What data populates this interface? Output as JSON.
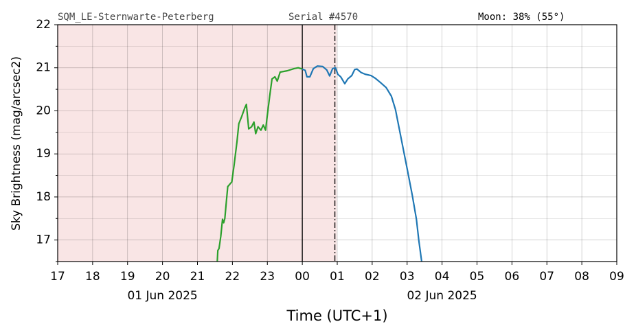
{
  "chart_data": {
    "type": "line",
    "header": {
      "site": "SQM_LE-Sternwarte-Peterberg",
      "serial": "Serial #4570",
      "moon": "Moon: 38% (55°)"
    },
    "xlabel": "Time (UTC+1)",
    "ylabel": "Sky Brightness (mag/arcsec2)",
    "xlim": [
      "2025-06-01 17:00",
      "2025-06-02 09:00"
    ],
    "xticks": [
      {
        "value": "2025-06-01 17:00",
        "label": "17"
      },
      {
        "value": "2025-06-01 18:00",
        "label": "18"
      },
      {
        "value": "2025-06-01 19:00",
        "label": "19"
      },
      {
        "value": "2025-06-01 20:00",
        "label": "20"
      },
      {
        "value": "2025-06-01 21:00",
        "label": "21"
      },
      {
        "value": "2025-06-01 22:00",
        "label": "22"
      },
      {
        "value": "2025-06-01 23:00",
        "label": "23"
      },
      {
        "value": "2025-06-02 00:00",
        "label": "00"
      },
      {
        "value": "2025-06-02 01:00",
        "label": "01"
      },
      {
        "value": "2025-06-02 02:00",
        "label": "02"
      },
      {
        "value": "2025-06-02 03:00",
        "label": "03"
      },
      {
        "value": "2025-06-02 04:00",
        "label": "04"
      },
      {
        "value": "2025-06-02 05:00",
        "label": "05"
      },
      {
        "value": "2025-06-02 06:00",
        "label": "06"
      },
      {
        "value": "2025-06-02 07:00",
        "label": "07"
      },
      {
        "value": "2025-06-02 08:00",
        "label": "08"
      },
      {
        "value": "2025-06-02 09:00",
        "label": "09"
      }
    ],
    "date_labels": [
      {
        "value": "2025-06-01 20:00",
        "label": "01 Jun 2025"
      },
      {
        "value": "2025-06-02 04:00",
        "label": "02 Jun 2025"
      }
    ],
    "ylim": [
      16.5,
      22
    ],
    "yticks": [
      17,
      18,
      19,
      20,
      21,
      22
    ],
    "yminor": [
      16.5,
      17.5,
      18.5,
      19.5,
      20.5,
      21.5
    ],
    "grid": true,
    "shade": {
      "from": "2025-06-01 17:00",
      "to": "2025-06-02 00:59",
      "color": "#f9e5e5"
    },
    "vlines": [
      {
        "x": "2025-06-02 00:00",
        "style": "solid"
      },
      {
        "x": "2025-06-02 00:56",
        "style": "dashdot"
      }
    ],
    "series": [
      {
        "color": "#2ca02c",
        "x": [
          "2025-06-01 21:34",
          "2025-06-01 21:35",
          "2025-06-01 21:37",
          "2025-06-01 21:40",
          "2025-06-01 21:43",
          "2025-06-01 21:45",
          "2025-06-01 21:47",
          "2025-06-01 21:50",
          "2025-06-01 21:52",
          "2025-06-01 21:59",
          "2025-06-01 22:03",
          "2025-06-01 22:08",
          "2025-06-01 22:11",
          "2025-06-01 22:16",
          "2025-06-01 22:21",
          "2025-06-01 22:24",
          "2025-06-01 22:28",
          "2025-06-01 22:33",
          "2025-06-01 22:37",
          "2025-06-01 22:40",
          "2025-06-01 22:44",
          "2025-06-01 22:49",
          "2025-06-01 22:53",
          "2025-06-01 22:57",
          "2025-06-01 22:59",
          "2025-06-01 23:04",
          "2025-06-01 23:08",
          "2025-06-01 23:13",
          "2025-06-01 23:17",
          "2025-06-01 23:22",
          "2025-06-01 23:34",
          "2025-06-01 23:46",
          "2025-06-01 23:53",
          "2025-06-02 00:00"
        ],
        "values": [
          16.5,
          16.76,
          16.8,
          17.08,
          17.48,
          17.4,
          17.5,
          17.95,
          18.24,
          18.35,
          18.75,
          19.3,
          19.7,
          19.87,
          20.06,
          20.15,
          19.58,
          19.63,
          19.74,
          19.47,
          19.63,
          19.55,
          19.67,
          19.55,
          19.79,
          20.34,
          20.74,
          20.79,
          20.69,
          20.9,
          20.93,
          20.98,
          21.0,
          20.97
        ]
      },
      {
        "color": "#1f77b4",
        "x": [
          "2025-06-02 00:00",
          "2025-06-02 00:05",
          "2025-06-02 00:08",
          "2025-06-02 00:13",
          "2025-06-02 00:19",
          "2025-06-02 00:26",
          "2025-06-02 00:35",
          "2025-06-02 00:42",
          "2025-06-02 00:47",
          "2025-06-02 00:52",
          "2025-06-02 00:57",
          "2025-06-02 01:01",
          "2025-06-02 01:06",
          "2025-06-02 01:13",
          "2025-06-02 01:18",
          "2025-06-02 01:25",
          "2025-06-02 01:30",
          "2025-06-02 01:34",
          "2025-06-02 01:41",
          "2025-06-02 01:48",
          "2025-06-02 01:58",
          "2025-06-02 02:05",
          "2025-06-02 02:14",
          "2025-06-02 02:24",
          "2025-06-02 02:33",
          "2025-06-02 02:40",
          "2025-06-02 02:47",
          "2025-06-02 02:54",
          "2025-06-02 03:01",
          "2025-06-02 03:09",
          "2025-06-02 03:16",
          "2025-06-02 03:20",
          "2025-06-02 03:25"
        ],
        "values": [
          20.97,
          20.94,
          20.79,
          20.79,
          20.98,
          21.04,
          21.03,
          20.95,
          20.81,
          20.98,
          21.0,
          20.85,
          20.79,
          20.63,
          20.74,
          20.82,
          20.96,
          20.97,
          20.89,
          20.85,
          20.82,
          20.76,
          20.66,
          20.54,
          20.34,
          20.03,
          19.55,
          19.07,
          18.59,
          18.03,
          17.48,
          17.0,
          16.5
        ]
      }
    ]
  }
}
